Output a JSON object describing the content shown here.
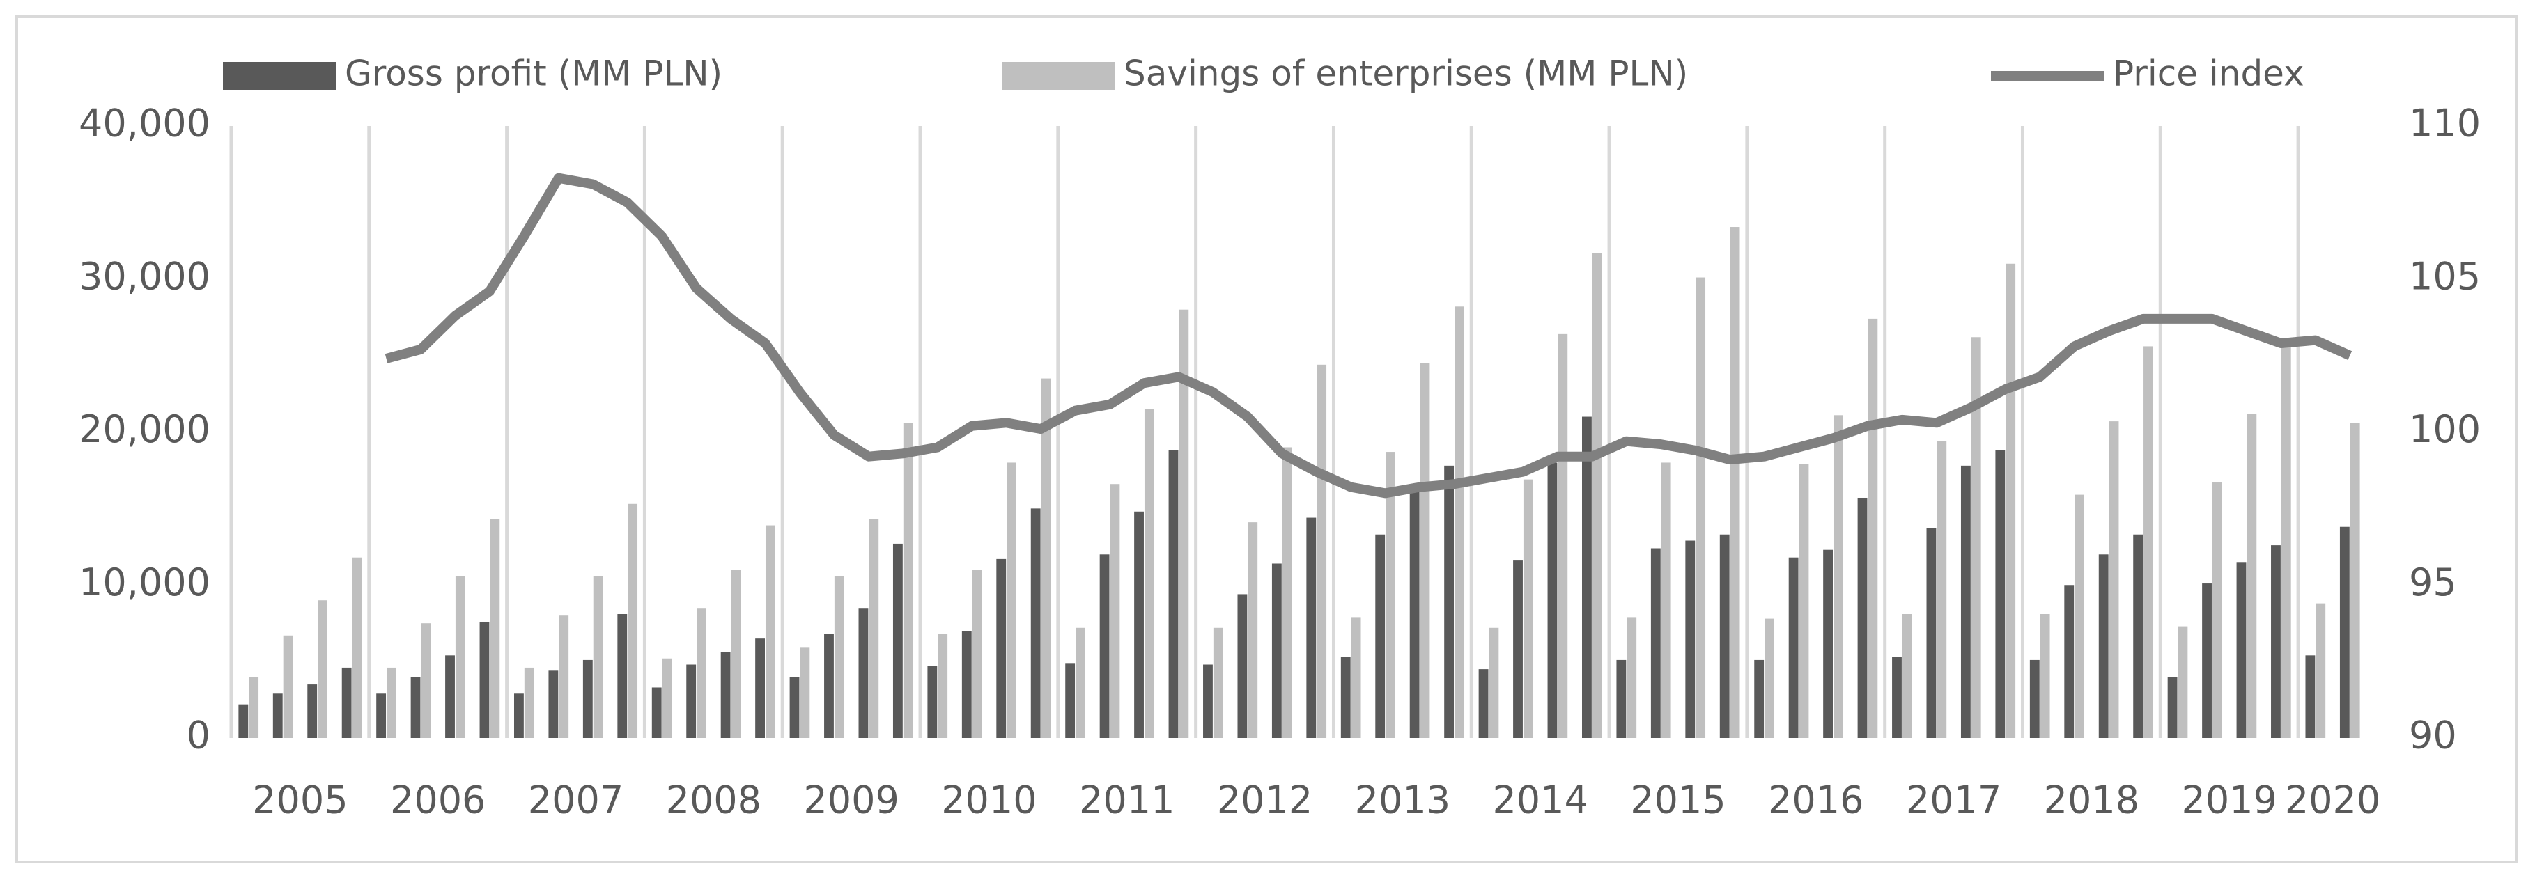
{
  "chart_data": {
    "type": "bar_line",
    "categories": [
      "2005",
      "2005",
      "2005",
      "2005",
      "2006",
      "2006",
      "2006",
      "2006",
      "2007",
      "2007",
      "2007",
      "2007",
      "2008",
      "2008",
      "2008",
      "2008",
      "2009",
      "2009",
      "2009",
      "2009",
      "2010",
      "2010",
      "2010",
      "2010",
      "2011",
      "2011",
      "2011",
      "2011",
      "2012",
      "2012",
      "2012",
      "2012",
      "2013",
      "2013",
      "2013",
      "2013",
      "2014",
      "2014",
      "2014",
      "2014",
      "2015",
      "2015",
      "2015",
      "2015",
      "2016",
      "2016",
      "2016",
      "2016",
      "2017",
      "2017",
      "2017",
      "2017",
      "2018",
      "2018",
      "2018",
      "2018",
      "2019",
      "2019",
      "2019",
      "2019",
      "2020",
      "2020"
    ],
    "series": [
      {
        "name": "Gross profit (MM PLN)",
        "type": "bar",
        "color": "#595959",
        "values": [
          2200,
          2900,
          3500,
          4600,
          2900,
          4000,
          5400,
          7600,
          2900,
          4400,
          5100,
          8100,
          3300,
          4800,
          5600,
          6500,
          4000,
          6800,
          8500,
          12700,
          4700,
          7000,
          11700,
          15000,
          4900,
          12000,
          14800,
          18800,
          4800,
          9400,
          11400,
          14400,
          5300,
          13300,
          16300,
          17800,
          4500,
          11600,
          18000,
          21000,
          5100,
          12400,
          12900,
          13300,
          5100,
          11800,
          12300,
          15700,
          5300,
          13700,
          17800,
          18800,
          5100,
          10000,
          12000,
          13300,
          4000,
          10100,
          11500,
          12600,
          5400,
          13800
        ]
      },
      {
        "name": "Savings of enterprises (MM PLN)",
        "type": "bar",
        "color": "#bfbfbf",
        "values": [
          4000,
          6700,
          9000,
          11800,
          4600,
          7500,
          10600,
          14300,
          4600,
          8000,
          10600,
          15300,
          5200,
          8500,
          11000,
          13900,
          5900,
          10600,
          14300,
          20600,
          6800,
          11000,
          18000,
          23500,
          7200,
          16600,
          21500,
          28000,
          7200,
          14100,
          19000,
          24400,
          7900,
          18700,
          24500,
          28200,
          7200,
          16900,
          26400,
          31700,
          7900,
          18000,
          30100,
          33400,
          7800,
          17900,
          21100,
          27400,
          8100,
          19400,
          26200,
          31000,
          8100,
          15900,
          20700,
          25600,
          7300,
          16700,
          21200,
          25600,
          8800,
          20600
        ]
      },
      {
        "name": "Price index",
        "type": "line",
        "axis": "y2",
        "color": "#808080",
        "values": [
          null,
          null,
          null,
          null,
          102.4,
          102.7,
          103.8,
          104.6,
          106.4,
          108.3,
          108.1,
          107.5,
          106.4,
          104.7,
          103.7,
          102.9,
          101.3,
          99.9,
          99.2,
          99.3,
          99.5,
          100.2,
          100.3,
          100.1,
          100.7,
          100.9,
          101.6,
          101.8,
          101.3,
          100.5,
          99.3,
          98.7,
          98.2,
          98.0,
          98.2,
          98.3,
          98.5,
          98.7,
          99.2,
          99.2,
          99.7,
          99.6,
          99.4,
          99.1,
          99.2,
          99.5,
          99.8,
          100.2,
          100.4,
          100.3,
          100.8,
          101.4,
          101.8,
          102.8,
          103.3,
          103.7,
          103.7,
          103.7,
          103.3,
          102.9,
          103.0,
          102.5
        ]
      }
    ],
    "ylim": [
      0,
      40000
    ],
    "yticks": [
      0,
      {
        "value": 10000,
        "label": "10,000"
      },
      {
        "value": 20000,
        "label": "20,000"
      },
      {
        "value": 30000,
        "label": "30,000"
      },
      {
        "value": 40000,
        "label": "40,000"
      }
    ],
    "y2lim": [
      90,
      110
    ],
    "y2ticks": [
      90,
      95,
      100,
      105,
      110
    ],
    "grid": true,
    "legend": "top"
  }
}
